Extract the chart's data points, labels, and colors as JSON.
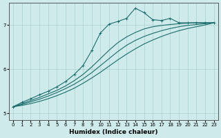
{
  "xlabel": "Humidex (Indice chaleur)",
  "ylabel": "",
  "bg_color": "#ceeaea",
  "line_color": "#1a6b6b",
  "xlim": [
    -0.5,
    23.5
  ],
  "ylim": [
    4.85,
    7.5
  ],
  "yticks": [
    5,
    6,
    7
  ],
  "xticks": [
    0,
    1,
    2,
    3,
    4,
    5,
    6,
    7,
    8,
    9,
    10,
    11,
    12,
    13,
    14,
    15,
    16,
    17,
    18,
    19,
    20,
    21,
    22,
    23
  ],
  "line1_x": [
    0,
    1,
    2,
    3,
    4,
    5,
    6,
    7,
    8,
    9,
    10,
    11,
    12,
    13,
    14,
    15,
    16,
    17,
    18,
    19,
    20,
    21,
    22,
    23
  ],
  "line1_y": [
    5.15,
    5.25,
    5.33,
    5.42,
    5.5,
    5.6,
    5.72,
    5.88,
    6.08,
    6.42,
    6.82,
    7.02,
    7.08,
    7.15,
    7.38,
    7.28,
    7.12,
    7.1,
    7.15,
    7.05,
    7.05,
    7.05,
    7.05,
    7.05
  ],
  "line2_x": [
    0,
    1,
    2,
    3,
    4,
    5,
    6,
    7,
    8,
    9,
    10,
    11,
    12,
    13,
    14,
    15,
    16,
    17,
    18,
    19,
    20,
    21,
    22,
    23
  ],
  "line2_y": [
    5.15,
    5.22,
    5.29,
    5.36,
    5.44,
    5.52,
    5.62,
    5.74,
    5.88,
    6.05,
    6.24,
    6.43,
    6.6,
    6.73,
    6.83,
    6.91,
    6.96,
    6.99,
    7.01,
    7.03,
    7.04,
    7.05,
    7.05,
    7.05
  ],
  "line3_x": [
    0,
    1,
    2,
    3,
    4,
    5,
    6,
    7,
    8,
    9,
    10,
    11,
    12,
    13,
    14,
    15,
    16,
    17,
    18,
    19,
    20,
    21,
    22,
    23
  ],
  "line3_y": [
    5.15,
    5.2,
    5.26,
    5.32,
    5.39,
    5.47,
    5.56,
    5.66,
    5.78,
    5.92,
    6.08,
    6.24,
    6.4,
    6.54,
    6.65,
    6.74,
    6.81,
    6.87,
    6.92,
    6.96,
    6.99,
    7.01,
    7.03,
    7.05
  ],
  "line4_x": [
    0,
    1,
    2,
    3,
    4,
    5,
    6,
    7,
    8,
    9,
    10,
    11,
    12,
    13,
    14,
    15,
    16,
    17,
    18,
    19,
    20,
    21,
    22,
    23
  ],
  "line4_y": [
    5.15,
    5.18,
    5.22,
    5.27,
    5.33,
    5.4,
    5.48,
    5.57,
    5.68,
    5.8,
    5.93,
    6.07,
    6.21,
    6.34,
    6.46,
    6.57,
    6.66,
    6.74,
    6.81,
    6.87,
    6.92,
    6.96,
    7.0,
    7.05
  ]
}
